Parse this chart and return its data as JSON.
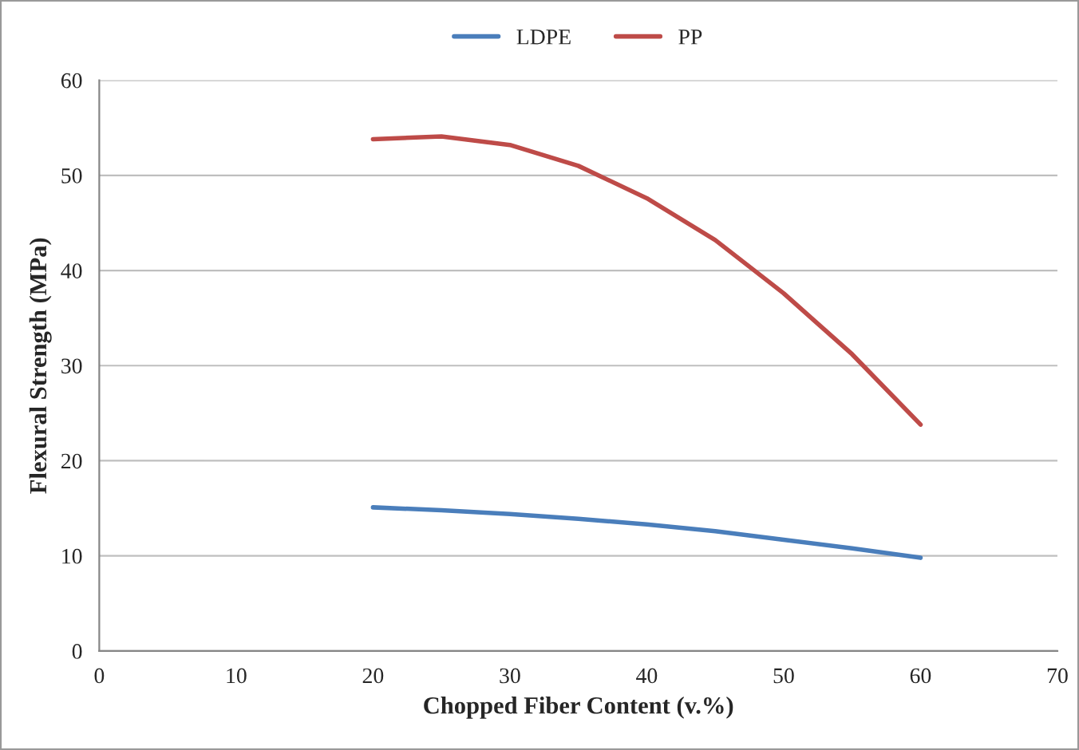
{
  "chart_data": {
    "type": "line",
    "xlabel": "Chopped Fiber Content (v.%)",
    "ylabel": "Flexural Strength (MPa)",
    "x": [
      20,
      25,
      30,
      35,
      40,
      45,
      50,
      55,
      60
    ],
    "series": [
      {
        "name": "LDPE",
        "color": "#4a7ebb",
        "values": [
          15.1,
          14.8,
          14.4,
          13.9,
          13.3,
          12.6,
          11.7,
          10.8,
          9.8
        ]
      },
      {
        "name": "PP",
        "color": "#be4b48",
        "values": [
          53.8,
          54.1,
          53.2,
          51.0,
          47.6,
          43.2,
          37.6,
          31.2,
          23.8
        ]
      }
    ],
    "xlim": [
      0,
      70
    ],
    "xticks": [
      0,
      10,
      20,
      30,
      40,
      50,
      60,
      70
    ],
    "ylim": [
      0,
      60
    ],
    "yticks": [
      0,
      10,
      20,
      30,
      40,
      50,
      60
    ],
    "grid": "y",
    "legend": "top",
    "marker": "none",
    "line_style": "solid"
  }
}
